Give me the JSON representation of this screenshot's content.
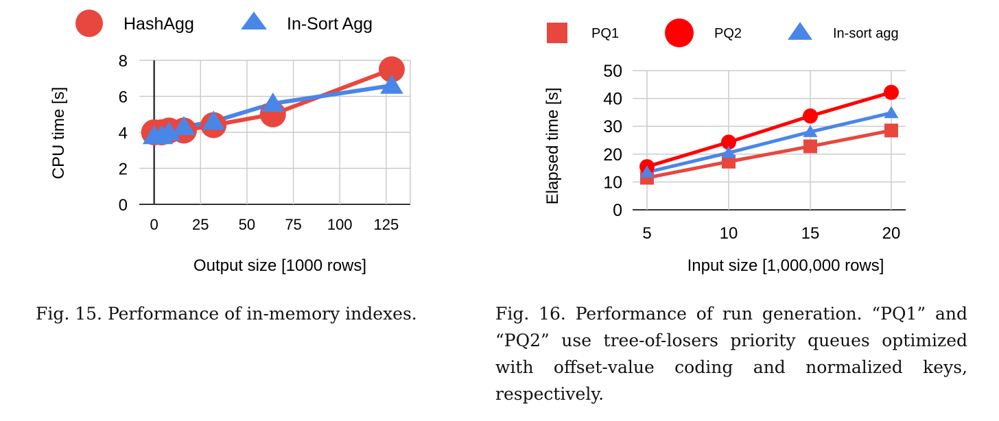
{
  "chart_data": [
    {
      "type": "line",
      "xlabel": "Output size [1000 rows]",
      "ylabel": "CPU time [s]",
      "xlim": [
        -8,
        138
      ],
      "ylim": [
        0,
        8
      ],
      "xticks": [
        "0",
        "25",
        "50",
        "75",
        "100",
        "125"
      ],
      "yticks": [
        "0",
        "2",
        "4",
        "6",
        "8"
      ],
      "grid": true,
      "legend_position": "top",
      "series": [
        {
          "name": "HashAgg",
          "marker": "circle",
          "color": "#e8473e",
          "x": [
            0,
            4,
            8,
            16,
            32,
            64,
            128
          ],
          "y": [
            4.0,
            4.0,
            4.1,
            4.1,
            4.4,
            5.0,
            7.5
          ]
        },
        {
          "name": "In-Sort Agg",
          "marker": "triangle",
          "color": "#4a86e8",
          "x": [
            0,
            4,
            8,
            16,
            32,
            64,
            128
          ],
          "y": [
            3.8,
            3.8,
            4.0,
            4.3,
            4.6,
            5.6,
            6.6
          ]
        }
      ]
    },
    {
      "type": "line",
      "xlabel": "Input size [1,000,000 rows]",
      "ylabel": "Elapsed time [s]",
      "categories": [
        "5",
        "10",
        "15",
        "20"
      ],
      "ylim": [
        0,
        50
      ],
      "yticks": [
        "0",
        "10",
        "20",
        "30",
        "40",
        "50"
      ],
      "grid": true,
      "legend_position": "top",
      "series": [
        {
          "name": "PQ1",
          "marker": "square",
          "color": "#e8473e",
          "values": [
            11.5,
            17.3,
            22.8,
            28.5
          ]
        },
        {
          "name": "PQ2",
          "marker": "circle",
          "color": "#ff0000",
          "values": [
            15.5,
            24.3,
            33.7,
            42.2
          ]
        },
        {
          "name": "In-sort agg",
          "marker": "triangle",
          "color": "#4a86e8",
          "values": [
            13.5,
            20.5,
            28.0,
            34.8
          ]
        }
      ]
    }
  ],
  "captions": {
    "fig15": "Fig. 15.  Performance of in-memory indexes.",
    "fig16": "Fig. 16. Performance of run generation. “PQ1” and “PQ2” use tree-of-losers priority queues optimized with offset-value coding and normalized keys, respectively."
  }
}
